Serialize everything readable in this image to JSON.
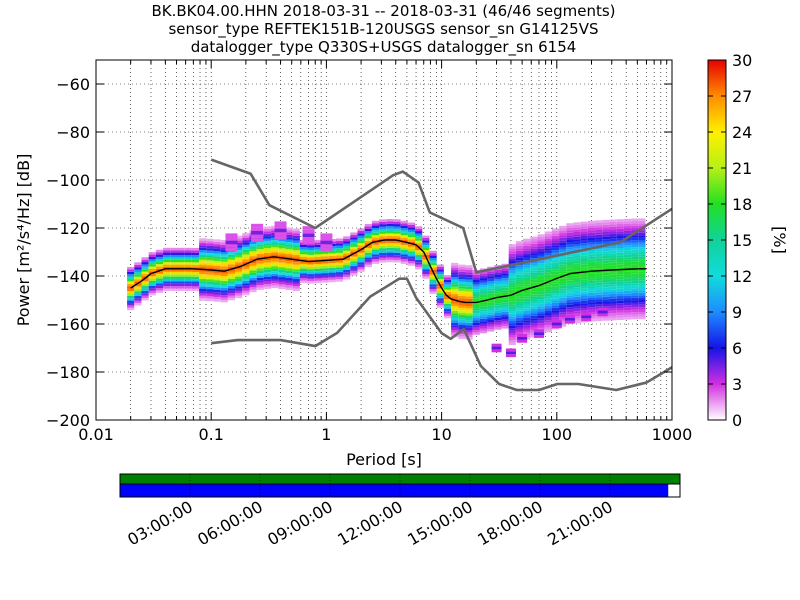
{
  "title_lines": [
    "BK.BK04.00.HHN   2018-03-31 -- 2018-03-31  (46/46 segments)",
    "sensor_type REFTEK151B-120USGS sensor_sn G14125VS",
    "datalogger_type Q330S+USGS datalogger_sn 6154"
  ],
  "colorbar": {
    "label": "[%]",
    "ticks": [
      "0",
      "3",
      "6",
      "9",
      "12",
      "15",
      "18",
      "21",
      "24",
      "27",
      "30"
    ],
    "range": [
      0,
      30
    ]
  },
  "chart_data": {
    "type": "heatmap",
    "title": "BK.BK04.00.HHN   2018-03-31 -- 2018-03-31  (46/46 segments)",
    "xlabel": "Period [s]",
    "ylabel": "Power [m²/s⁴/Hz] [dB]",
    "xscale": "log",
    "xlim": [
      0.01,
      1000
    ],
    "ylim": [
      -200,
      -50
    ],
    "grid": true,
    "xticks": [
      0.01,
      0.1,
      1,
      10,
      100,
      1000
    ],
    "xtick_labels": [
      "0.01",
      "0.1",
      "1",
      "10",
      "100",
      "1000"
    ],
    "yticks": [
      -200,
      -180,
      -160,
      -140,
      -120,
      -100,
      -80,
      -60
    ],
    "ytick_labels": [
      "−200",
      "−180",
      "−160",
      "−140",
      "−120",
      "−100",
      "−80",
      "−60"
    ],
    "nhnm": {
      "name": "NHNM",
      "x": [
        0.1,
        0.22,
        0.32,
        0.8,
        3.8,
        4.6,
        6.3,
        7.9,
        15.4,
        20,
        354.8,
        1000
      ],
      "y": [
        -91.5,
        -97.4,
        -110.5,
        -120,
        -98,
        -96.5,
        -101,
        -113.5,
        -120,
        -138.5,
        -126,
        -112
      ]
    },
    "nlnm": {
      "name": "NLNM",
      "x": [
        0.1,
        0.17,
        0.4,
        0.8,
        1.24,
        2.4,
        4.3,
        5,
        6,
        10,
        12,
        15.6,
        21.9,
        31.6,
        45,
        70,
        101,
        154,
        328,
        600,
        1000
      ],
      "y": [
        -168,
        -166.7,
        -166.7,
        -169.2,
        -163.7,
        -148.6,
        -141.1,
        -141.1,
        -149,
        -163.8,
        -166.2,
        -162.1,
        -177.5,
        -185,
        -187.5,
        -187.5,
        -185,
        -185,
        -187.5,
        -184.4,
        -178
      ]
    },
    "mode": {
      "name": "mode",
      "x": [
        0.02,
        0.025,
        0.03,
        0.04,
        0.05,
        0.07,
        0.1,
        0.13,
        0.18,
        0.25,
        0.35,
        0.5,
        0.7,
        1,
        1.4,
        2,
        2.5,
        3.2,
        4,
        5,
        6,
        7,
        8,
        9,
        10,
        11,
        12,
        14,
        16,
        20,
        25,
        30,
        40,
        50,
        70,
        100,
        130,
        200,
        300,
        500,
        600
      ],
      "y": [
        -145,
        -142,
        -139,
        -137,
        -137,
        -137,
        -137.5,
        -138,
        -136,
        -133,
        -132,
        -133,
        -134,
        -133.5,
        -133,
        -129,
        -126,
        -125,
        -125,
        -126,
        -127,
        -130,
        -136,
        -141,
        -145,
        -148,
        -149.5,
        -150.5,
        -151,
        -151,
        -150,
        -149,
        -148,
        -146,
        -144,
        -141,
        -139,
        -138,
        -137.5,
        -137,
        -137
      ]
    },
    "density_scale": [
      {
        "pct": 0,
        "color": "#ffffff"
      },
      {
        "pct": 3,
        "color": "#d22fe2"
      },
      {
        "pct": 6,
        "color": "#1414e6"
      },
      {
        "pct": 9,
        "color": "#1e8cff"
      },
      {
        "pct": 12,
        "color": "#10dcdc"
      },
      {
        "pct": 15,
        "color": "#10d29a"
      },
      {
        "pct": 18,
        "color": "#22e022"
      },
      {
        "pct": 21,
        "color": "#b6f016"
      },
      {
        "pct": 24,
        "color": "#fff000"
      },
      {
        "pct": 27,
        "color": "#ff8c00"
      },
      {
        "pct": 30,
        "color": "#e60000"
      }
    ]
  },
  "timeline": {
    "labels": [
      "03:00:00",
      "06:00:00",
      "09:00:00",
      "12:00:00",
      "15:00:00",
      "18:00:00",
      "21:00:00"
    ],
    "hours": [
      3,
      6,
      9,
      12,
      15,
      18,
      21
    ],
    "data_coverage_fraction": 1.0,
    "psd_coverage_fraction": 0.979,
    "data_color": "#008000",
    "psd_color": "#0000ff"
  },
  "colors": {
    "model_curves": "#666666",
    "mode_line": "#000000",
    "grid": "#000000"
  }
}
